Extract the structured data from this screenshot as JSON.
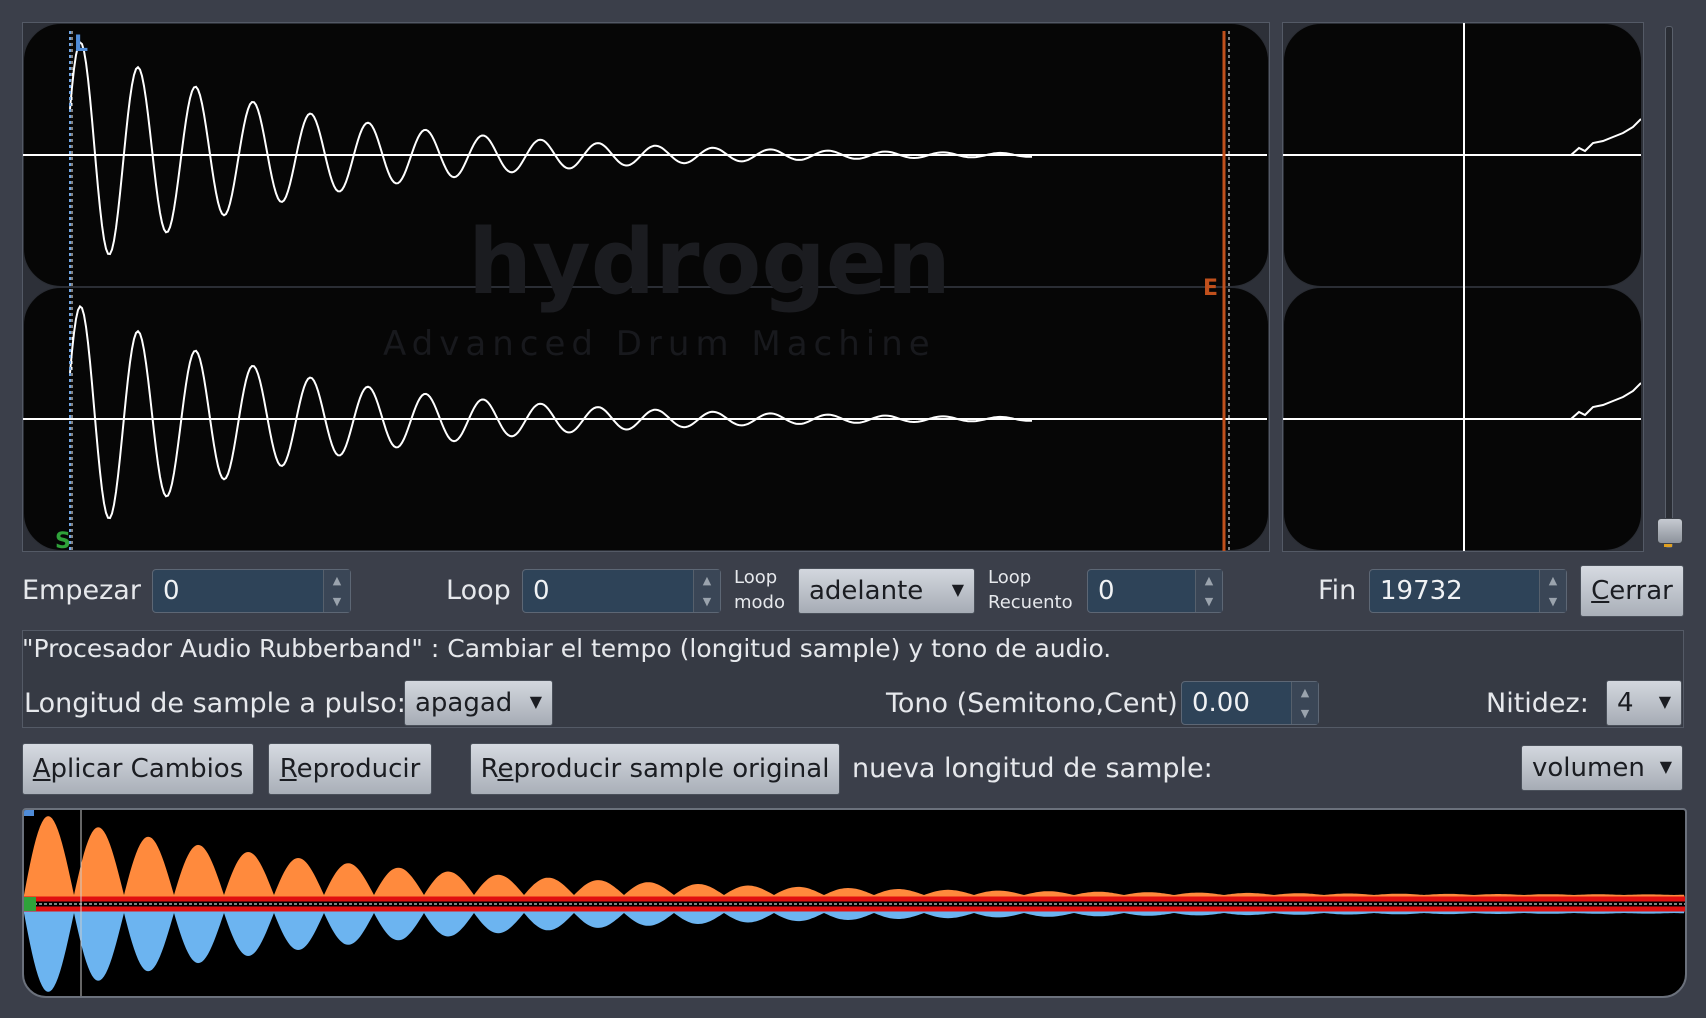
{
  "main_view": {
    "marker_loop": "L",
    "marker_start": "S",
    "marker_end": "E",
    "watermark_title": "hydrogen",
    "watermark_subtitle": "Advanced Drum Machine"
  },
  "positions": {
    "start_label": "Empezar",
    "start_value": "0",
    "loop_label": "Loop",
    "loop_value": "0",
    "loop_mode_label_1": "Loop",
    "loop_mode_label_2": "modo",
    "loop_mode_value": "adelante",
    "loop_count_label_1": "Loop",
    "loop_count_label_2": "Recuento",
    "loop_count_value": "0",
    "end_label": "Fin",
    "end_value": "19732",
    "close_button_rest": "errar",
    "close_button_accel": "C"
  },
  "rubberband": {
    "description": "\"Procesador Audio Rubberband\" : Cambiar el tempo (longitud sample) y tono de audio.",
    "length_label": "Longitud de sample a pulso:",
    "length_value": "apagad",
    "pitch_label": "Tono (Semitono,Cent)",
    "pitch_value": "0.00",
    "sharpness_label": "Nitidez:",
    "sharpness_value": "4"
  },
  "actions": {
    "apply_accel": "A",
    "apply_rest": "plicar Cambios",
    "play_accel": "R",
    "play_rest": "eproducir",
    "play_original_pre": "R",
    "play_original_accel": "e",
    "play_original_rest": "producir sample original",
    "new_length_label": "nueva longitud de sample:",
    "envelope_mode": "volumen"
  },
  "colors": {
    "background": "#3b3f4a",
    "waveform": "#ffffff",
    "end_marker": "#c0501c",
    "loop_marker": "#4f8cd8",
    "start_marker": "#2fa23a",
    "envelope_line": "#e01010",
    "wave_left": "#ff8a3d",
    "wave_right": "#6cb4f0"
  },
  "icons": {
    "spin_up": "arrow-up-icon",
    "spin_down": "arrow-down-icon",
    "combo_caret": "chevron-down-icon"
  }
}
